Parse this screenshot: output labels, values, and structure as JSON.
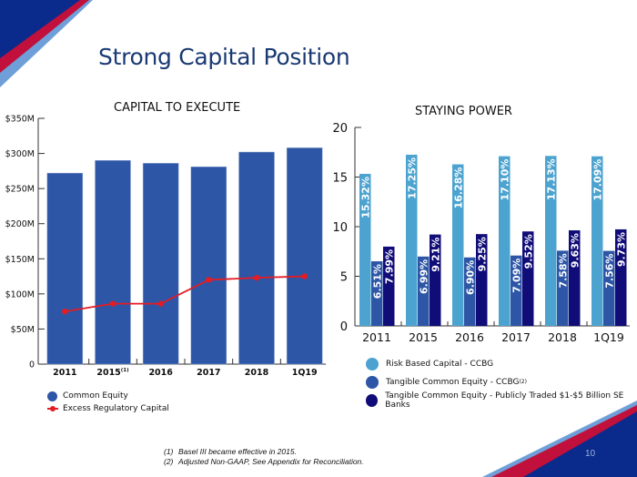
{
  "page": {
    "title": "Strong Capital Position",
    "page_number": "10",
    "colors": {
      "navy": "#0a2a8c",
      "red": "#c0103b",
      "light_blue": "#6e9fd8",
      "title_color": "#1a3a73"
    }
  },
  "footnotes": [
    {
      "num": "(1)",
      "text": "Basel III became effective in 2015."
    },
    {
      "num": "(2)",
      "text": "Adjusted Non-GAAP, See Appendix for Reconciliation."
    }
  ],
  "chart_data": [
    {
      "type": "bar",
      "title": "CAPITAL TO EXECUTE",
      "categories": [
        "2011",
        "2015",
        "2016",
        "2017",
        "2018",
        "1Q19"
      ],
      "category_superscripts": [
        "",
        "(1)",
        "",
        "",
        "",
        ""
      ],
      "ylim": [
        0,
        350
      ],
      "yticks": [
        0,
        50,
        100,
        150,
        200,
        250,
        300,
        350
      ],
      "ytick_labels": [
        "0",
        "$50M",
        "$100M",
        "$150M",
        "$200M",
        "$250M",
        "$300M",
        "$350M"
      ],
      "series": [
        {
          "name": "Common Equity",
          "kind": "bar",
          "color": "#2e56a6",
          "values": [
            272,
            290,
            286,
            281,
            302,
            308
          ]
        },
        {
          "name": "Excess Regulatory Capital",
          "kind": "line",
          "color": "#e41c23",
          "values": [
            75,
            86,
            86,
            120,
            123,
            125
          ]
        }
      ],
      "legend": "bottom-left"
    },
    {
      "type": "bar",
      "title": "STAYING POWER",
      "categories": [
        "2011",
        "2015",
        "2016",
        "2017",
        "2018",
        "1Q19"
      ],
      "ylim": [
        0,
        20
      ],
      "yticks": [
        0,
        5,
        10,
        15,
        20
      ],
      "ytick_labels": [
        "0",
        "5",
        "10",
        "15",
        "20"
      ],
      "series": [
        {
          "name": "Risk Based Capital - CCBG",
          "color": "#4da3cf",
          "values": [
            15.32,
            17.25,
            16.28,
            17.1,
            17.13,
            17.09
          ],
          "labels": [
            "15.32%",
            "17.25%",
            "16.28%",
            "17.10%",
            "17.13%",
            "17.09%"
          ]
        },
        {
          "name": "Tangible Common Equity - CCBG",
          "superscript": "(2)",
          "color": "#2e56a6",
          "values": [
            6.51,
            6.99,
            6.9,
            7.09,
            7.58,
            7.56
          ],
          "labels": [
            "6.51%",
            "6.99%",
            "6.90%",
            "7.09%",
            "7.58%",
            "7.56%"
          ]
        },
        {
          "name": "Tangible Common Equity - Publicly Traded $1-$5 Billion SE Banks",
          "color": "#100c78",
          "values": [
            7.99,
            9.21,
            9.25,
            9.52,
            9.63,
            9.73
          ],
          "labels": [
            "7.99%",
            "9.21%",
            "9.25%",
            "9.52%",
            "9.63%",
            "9.73%"
          ]
        }
      ],
      "legend": "bottom"
    }
  ]
}
